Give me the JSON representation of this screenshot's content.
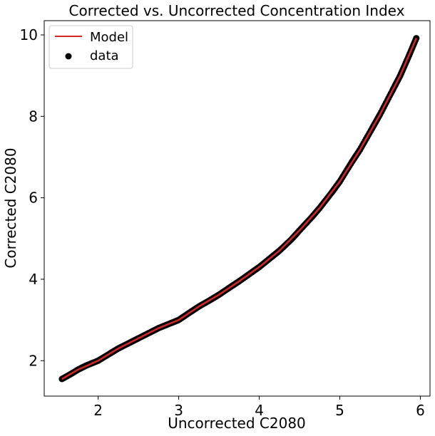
{
  "chart_data": {
    "type": "scatter",
    "title": "Corrected vs. Uncorrected Concentration Index",
    "xlabel": "Uncorrected C2080",
    "ylabel": "Corrected C2080",
    "xlim": [
      1.33,
      6.12
    ],
    "ylim": [
      1.13,
      10.35
    ],
    "xticks": [
      2,
      3,
      4,
      5,
      6
    ],
    "yticks": [
      2,
      4,
      6,
      8,
      10
    ],
    "grid": false,
    "legend_position": "top-left",
    "series": [
      {
        "name": "Model",
        "kind": "line",
        "color": "#d62728",
        "x": [
          1.55,
          1.75,
          2.0,
          2.25,
          2.5,
          2.75,
          3.0,
          3.25,
          3.5,
          3.75,
          4.0,
          4.25,
          4.5,
          4.75,
          5.0,
          5.25,
          5.5,
          5.75,
          5.95
        ],
        "y": [
          1.55,
          1.78,
          2.0,
          2.3,
          2.55,
          2.8,
          3.0,
          3.33,
          3.62,
          3.95,
          4.3,
          4.7,
          5.2,
          5.75,
          6.4,
          7.18,
          8.05,
          9.0,
          9.92
        ]
      },
      {
        "name": "data",
        "kind": "scatter",
        "color": "#000000",
        "x": [
          1.55,
          1.65,
          1.75,
          1.85,
          2.0,
          2.15,
          2.25,
          2.4,
          2.5,
          2.65,
          2.75,
          2.9,
          3.0,
          3.15,
          3.25,
          3.4,
          3.5,
          3.65,
          3.75,
          3.9,
          4.0,
          4.15,
          4.25,
          4.4,
          4.5,
          4.65,
          4.75,
          4.9,
          5.0,
          5.15,
          5.25,
          5.4,
          5.5,
          5.65,
          5.75,
          5.85,
          5.95
        ],
        "y": [
          1.55,
          1.66,
          1.78,
          1.88,
          2.0,
          2.18,
          2.3,
          2.45,
          2.55,
          2.7,
          2.8,
          2.92,
          3.0,
          3.2,
          3.33,
          3.5,
          3.62,
          3.82,
          3.95,
          4.16,
          4.3,
          4.54,
          4.7,
          4.98,
          5.2,
          5.52,
          5.75,
          6.13,
          6.4,
          6.88,
          7.18,
          7.7,
          8.05,
          8.62,
          9.0,
          9.45,
          9.92
        ]
      }
    ]
  }
}
